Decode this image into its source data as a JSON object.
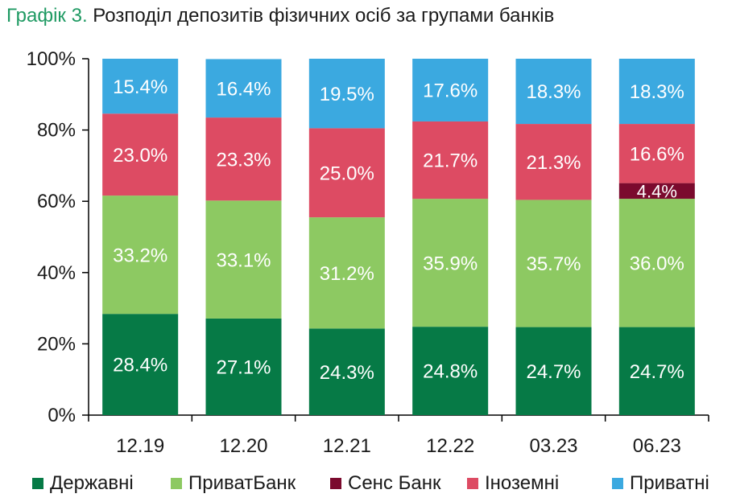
{
  "title": {
    "prefix": "Графік 3.",
    "text": "Розподіл депозитів фізичних осіб за групами банків"
  },
  "legend": [
    {
      "name": "Державні",
      "color": "#067a46"
    },
    {
      "name": "ПриватБанк",
      "color": "#8dc962"
    },
    {
      "name": "Сенс Банк",
      "color": "#7b0a2e"
    },
    {
      "name": "Іноземні",
      "color": "#dd4b63"
    },
    {
      "name": "Приватні",
      "color": "#3ba9e0"
    }
  ],
  "chart_data": {
    "type": "bar",
    "stacked": true,
    "categories": [
      "12.19",
      "12.20",
      "12.21",
      "12.22",
      "03.23",
      "06.23"
    ],
    "series": [
      {
        "name": "Державні",
        "color": "#067a46",
        "values": [
          28.4,
          27.1,
          24.3,
          24.8,
          24.7,
          24.7
        ],
        "labels": [
          "28.4%",
          "27.1%",
          "24.3%",
          "24.8%",
          "24.7%",
          "24.7%"
        ]
      },
      {
        "name": "ПриватБанк",
        "color": "#8dc962",
        "values": [
          33.2,
          33.1,
          31.2,
          35.9,
          35.7,
          36.0
        ],
        "labels": [
          "33.2%",
          "33.1%",
          "31.2%",
          "35.9%",
          "35.7%",
          "36.0%"
        ]
      },
      {
        "name": "Сенс Банк",
        "color": "#7b0a2e",
        "values": [
          0,
          0,
          0,
          0,
          0,
          4.4
        ],
        "labels": [
          "",
          "",
          "",
          "",
          "",
          "4.4%"
        ]
      },
      {
        "name": "Іноземні",
        "color": "#dd4b63",
        "values": [
          23.0,
          23.3,
          25.0,
          21.7,
          21.3,
          16.6
        ],
        "labels": [
          "23.0%",
          "23.3%",
          "25.0%",
          "21.7%",
          "21.3%",
          "16.6%"
        ]
      },
      {
        "name": "Приватні",
        "color": "#3ba9e0",
        "values": [
          15.4,
          16.4,
          19.5,
          17.6,
          18.3,
          18.3
        ],
        "labels": [
          "15.4%",
          "16.4%",
          "19.5%",
          "17.6%",
          "18.3%",
          "18.3%"
        ]
      }
    ],
    "y_ticks": [
      "0%",
      "20%",
      "40%",
      "60%",
      "80%",
      "100%"
    ],
    "ylim": [
      0,
      100
    ],
    "grid": false,
    "legend_position": "bottom"
  }
}
